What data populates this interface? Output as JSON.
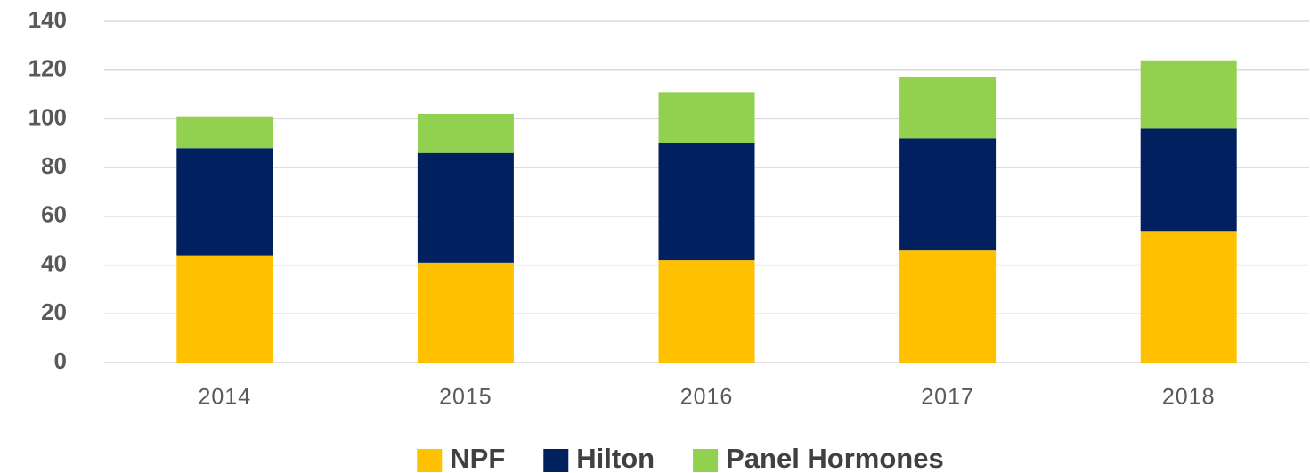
{
  "chart_data": {
    "type": "stacked_bar",
    "categories": [
      "2014",
      "2015",
      "2016",
      "2017",
      "2018"
    ],
    "series": [
      {
        "name": "NPF",
        "color": "#ffc000",
        "values": [
          44,
          41,
          42,
          46,
          54
        ]
      },
      {
        "name": "Hilton",
        "color": "#002060",
        "values": [
          44,
          45,
          48,
          46,
          42
        ]
      },
      {
        "name": "Panel Hormones",
        "color": "#92d050",
        "values": [
          13,
          16,
          21,
          25,
          28
        ]
      }
    ],
    "ylim": [
      0,
      140
    ],
    "yticks": [
      0,
      20,
      40,
      60,
      80,
      100,
      120,
      140
    ],
    "grid": true,
    "legend": "bottom"
  }
}
